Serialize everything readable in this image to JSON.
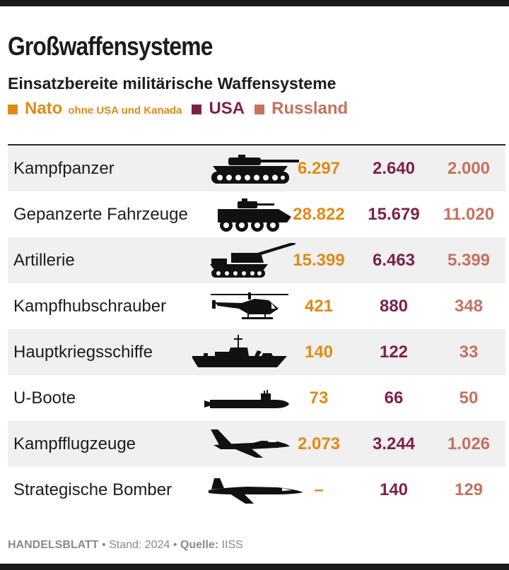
{
  "title": "Großwaffensysteme",
  "subtitle": "Einsatzbereite militärische Waffensysteme",
  "legend": {
    "nato": {
      "label": "Nato",
      "note": "ohne USA und Kanada",
      "color": "#e08a15"
    },
    "usa": {
      "label": "USA",
      "color": "#7c2245"
    },
    "russland": {
      "label": "Russland",
      "color": "#c5725e"
    }
  },
  "chart_data": {
    "type": "table",
    "title": "Großwaffensysteme",
    "subtitle": "Einsatzbereite militärische Waffensysteme",
    "series": [
      {
        "name": "Nato ohne USA und Kanada",
        "color": "#e08a15"
      },
      {
        "name": "USA",
        "color": "#7c2245"
      },
      {
        "name": "Russland",
        "color": "#c5725e"
      }
    ],
    "rows": [
      {
        "label": "Kampfpanzer",
        "icon": "tank-icon",
        "nato": "6.297",
        "usa": "2.640",
        "russland": "2.000"
      },
      {
        "label": "Gepanzerte Fahrzeuge",
        "icon": "armored-vehicle-icon",
        "nato": "28.822",
        "usa": "15.679",
        "russland": "11.020"
      },
      {
        "label": "Artillerie",
        "icon": "artillery-icon",
        "nato": "15.399",
        "usa": "6.463",
        "russland": "5.399"
      },
      {
        "label": "Kampfhubschrauber",
        "icon": "helicopter-icon",
        "nato": "421",
        "usa": "880",
        "russland": "348"
      },
      {
        "label": "Hauptkriegsschiffe",
        "icon": "warship-icon",
        "nato": "140",
        "usa": "122",
        "russland": "33"
      },
      {
        "label": "U-Boote",
        "icon": "submarine-icon",
        "nato": "73",
        "usa": "66",
        "russland": "50"
      },
      {
        "label": "Kampfflugzeuge",
        "icon": "fighter-jet-icon",
        "nato": "2.073",
        "usa": "3.244",
        "russland": "1.026"
      },
      {
        "label": "Strategische Bomber",
        "icon": "bomber-icon",
        "nato": "–",
        "usa": "140",
        "russland": "129"
      }
    ]
  },
  "footer": {
    "brand": "HANDELSBLATT",
    "sep1": " • ",
    "stand": "Stand: 2024",
    "sep2": " • ",
    "source_label": "Quelle:",
    "source": "IISS"
  }
}
